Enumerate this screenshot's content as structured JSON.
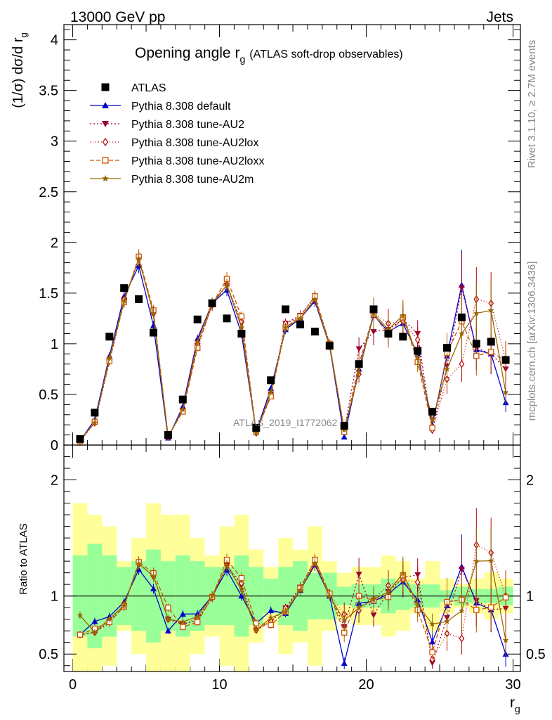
{
  "header": {
    "left": "13000 GeV pp",
    "right": "Jets"
  },
  "side_labels": {
    "rivet": "Rivet 3.1.10, ≥ 2.7M events",
    "mcplots": "mcplots.cern.ch [arXiv:1306.3436]"
  },
  "chart_data": {
    "type": "scatter",
    "title": "Opening angle r",
    "title_sub": "g",
    "title_suffix": "(ATLAS soft-drop observables)",
    "analysis_label": "ATLAS_2019_I1772062",
    "xlabel": "r",
    "xlabel_sub": "g",
    "ylabel": "(1/σ) dσ/d r",
    "ylabel_sub": "g",
    "ratio_ylabel": "Ratio to ATLAS",
    "xlim": [
      -0.6,
      30.5
    ],
    "ylim": [
      0,
      4.15
    ],
    "ratio_ylim": [
      0.35,
      2.3
    ],
    "x_ticks": [
      0,
      10,
      20,
      30
    ],
    "y_ticks": [
      0,
      0.5,
      1,
      1.5,
      2,
      2.5,
      3,
      3.5,
      4
    ],
    "ratio_ticks": [
      0.5,
      1,
      2
    ],
    "x_tick_labels": [
      "0",
      "10",
      "20",
      "30"
    ],
    "y_tick_labels": [
      "0",
      "0.5",
      "1",
      "1.5",
      "2",
      "2.5",
      "3",
      "3.5",
      "4"
    ],
    "ratio_tick_labels": [
      "0.5",
      "1",
      "2"
    ],
    "legend_position": "top-left",
    "x": [
      0.5,
      1.5,
      2.5,
      3.5,
      4.5,
      5.5,
      6.5,
      7.5,
      8.5,
      9.5,
      10.5,
      11.5,
      12.5,
      13.5,
      14.5,
      15.5,
      16.5,
      17.5,
      18.5,
      19.5,
      20.5,
      21.5,
      22.5,
      23.5,
      24.5,
      25.5,
      26.5,
      27.5,
      28.5,
      29.5
    ],
    "atlas": {
      "name": "ATLAS",
      "values": [
        0.06,
        0.32,
        1.07,
        1.55,
        1.44,
        1.11,
        0.1,
        0.45,
        1.24,
        1.4,
        1.25,
        1.1,
        0.17,
        0.64,
        1.34,
        1.19,
        1.12,
        0.98,
        0.19,
        0.8,
        1.34,
        1.1,
        1.07,
        0.93,
        0.33,
        0.96,
        1.26,
        1.0,
        1.02,
        0.84
      ],
      "band_inner": [
        0.35,
        0.45,
        0.35,
        0.25,
        0.3,
        0.4,
        0.3,
        0.35,
        0.3,
        0.25,
        0.25,
        0.35,
        0.25,
        0.15,
        0.25,
        0.3,
        0.2,
        0.2,
        0.08,
        0.1,
        0.1,
        0.15,
        0.12,
        0.1,
        0.1,
        0.05,
        0.08,
        0.06,
        0.06,
        0.08
      ],
      "band_outer": [
        0.8,
        0.7,
        0.6,
        0.3,
        0.5,
        0.8,
        0.7,
        0.7,
        0.5,
        0.35,
        0.6,
        0.7,
        0.4,
        0.25,
        0.5,
        0.4,
        0.6,
        0.3,
        0.2,
        0.25,
        0.25,
        0.35,
        0.3,
        0.15,
        0.3,
        0.15,
        0.1,
        0.15,
        0.2,
        0.15
      ]
    },
    "series": [
      {
        "name": "Pythia 8.308 default",
        "color": "#0000cc",
        "dash": "",
        "marker": "triangle-up",
        "values": [
          0.04,
          0.25,
          0.88,
          1.47,
          1.77,
          1.18,
          0.07,
          0.38,
          1.05,
          1.4,
          1.53,
          1.1,
          0.13,
          0.56,
          1.14,
          1.25,
          1.42,
          0.98,
          0.08,
          0.75,
          1.28,
          1.12,
          1.2,
          0.9,
          0.2,
          0.88,
          1.58,
          0.94,
          0.9,
          0.42
        ]
      },
      {
        "name": "Pythia 8.308 tune-AU2",
        "color": "#990033",
        "dash": "2,3",
        "marker": "triangle-down",
        "values": [
          0.04,
          0.22,
          0.82,
          1.42,
          1.84,
          1.3,
          0.08,
          0.34,
          0.98,
          1.38,
          1.58,
          1.2,
          0.12,
          0.5,
          1.2,
          1.28,
          1.46,
          1.0,
          0.14,
          0.95,
          1.12,
          1.14,
          1.24,
          1.1,
          0.14,
          0.78,
          1.55,
          0.96,
          0.9,
          0.75
        ]
      },
      {
        "name": "Pythia 8.308 tune-AU2lox",
        "color": "#bb0000",
        "dash": "1,3",
        "marker": "diamond-open",
        "values": [
          0.04,
          0.22,
          0.84,
          1.44,
          1.84,
          1.3,
          0.08,
          0.34,
          1.0,
          1.38,
          1.58,
          1.22,
          0.12,
          0.5,
          1.2,
          1.26,
          1.44,
          1.0,
          0.16,
          0.7,
          1.3,
          1.2,
          1.22,
          1.04,
          0.15,
          0.65,
          0.8,
          1.44,
          1.4,
          0.84
        ]
      },
      {
        "name": "Pythia 8.308 tune-AU2loxx",
        "color": "#cc5500",
        "dash": "6,3",
        "marker": "square-open",
        "values": [
          0.04,
          0.23,
          0.83,
          1.41,
          1.86,
          1.33,
          0.09,
          0.33,
          0.96,
          1.39,
          1.64,
          1.27,
          0.13,
          0.48,
          1.16,
          1.27,
          1.47,
          1.0,
          0.13,
          0.8,
          1.29,
          1.09,
          1.26,
          0.82,
          0.17,
          0.91,
          1.22,
          0.88,
          0.92,
          0.83
        ]
      },
      {
        "name": "Pythia 8.308 tune-AU2m",
        "color": "#996600",
        "dash": "",
        "marker": "star",
        "values": [
          0.05,
          0.22,
          0.86,
          1.42,
          1.84,
          1.3,
          0.08,
          0.35,
          1.02,
          1.4,
          1.58,
          1.16,
          0.12,
          0.52,
          1.16,
          1.25,
          1.44,
          0.98,
          0.15,
          0.72,
          1.3,
          1.14,
          1.28,
          0.86,
          0.25,
          0.75,
          1.1,
          1.3,
          1.33,
          0.52
        ]
      }
    ]
  }
}
